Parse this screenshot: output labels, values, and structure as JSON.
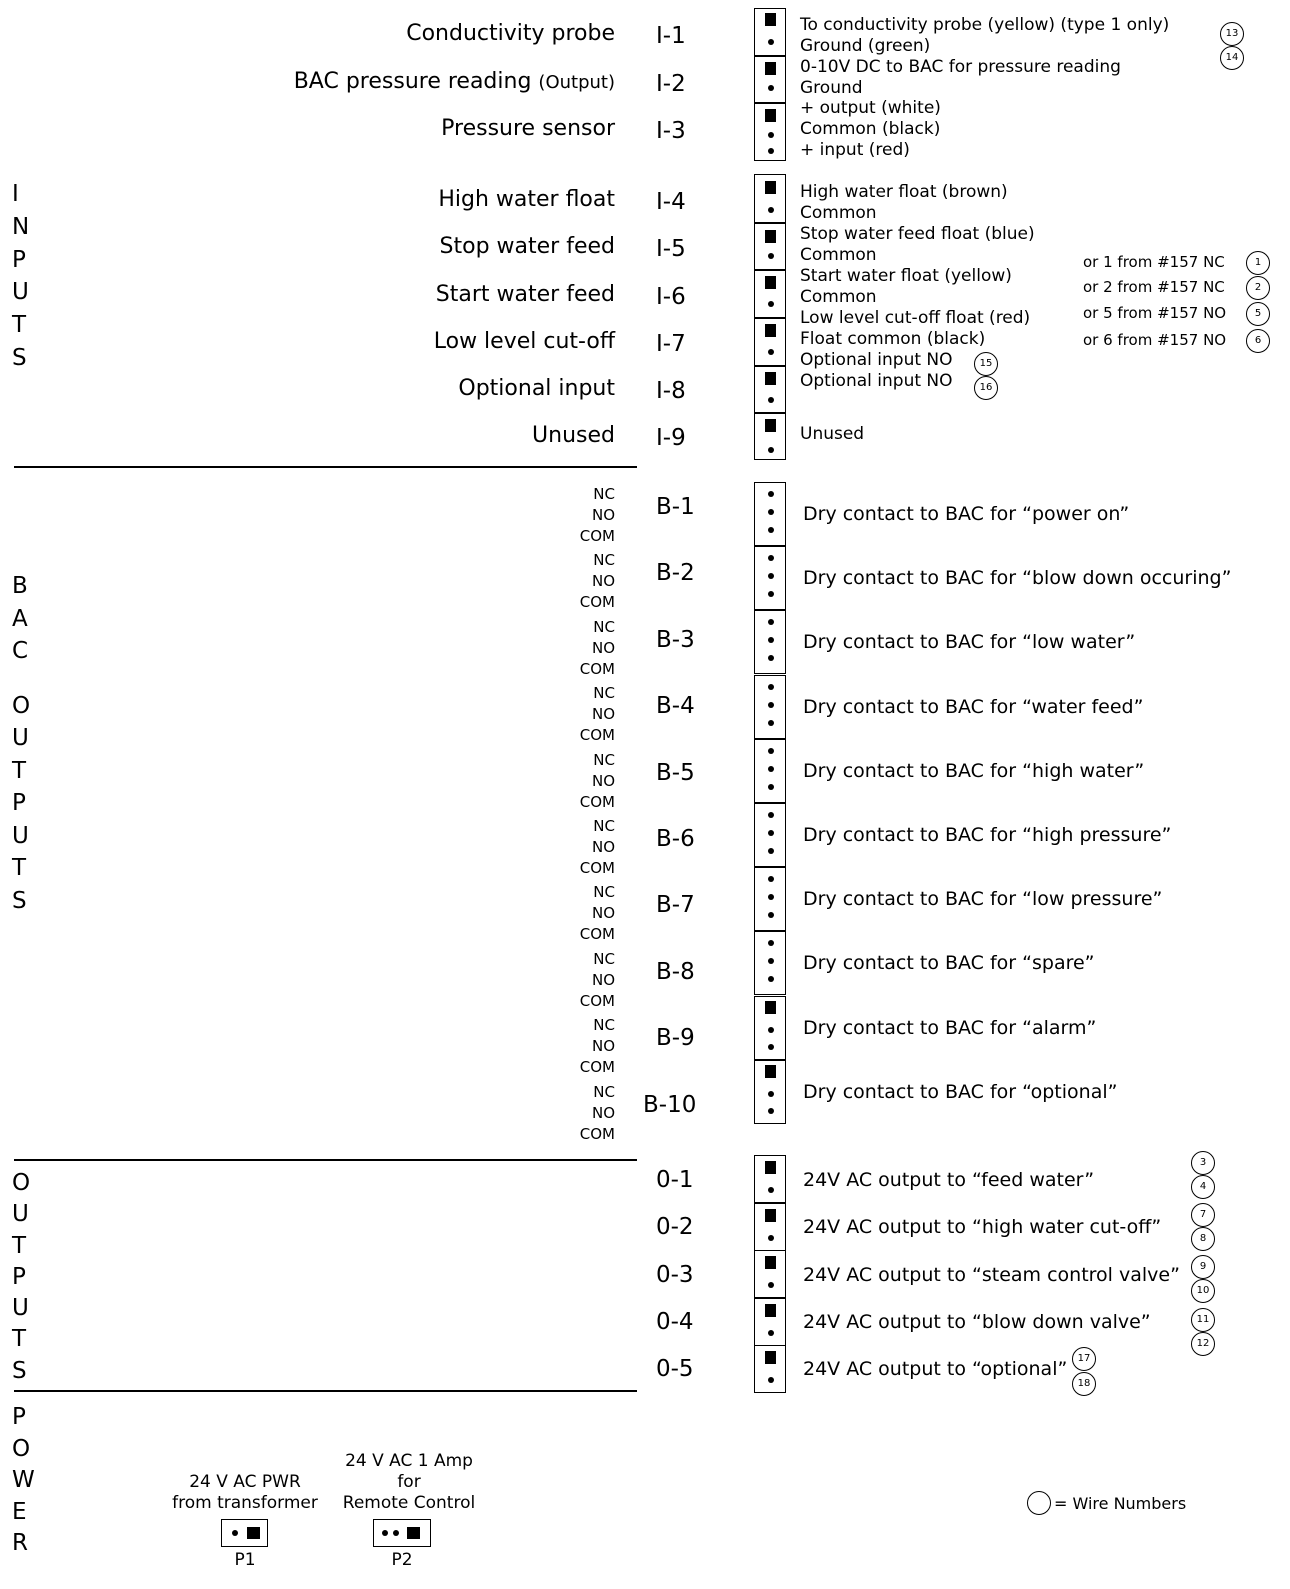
{
  "sections": {
    "inputs_vertical": "INPUTS",
    "bac_vertical": "BAC OUTPUTS",
    "outputs_vertical": "OUTPUTS",
    "power_vertical": "POWER"
  },
  "inputs": [
    {
      "label": "Conductivity probe",
      "term": "I-1",
      "lines": [
        "To conductivity probe (yellow) (type 1 only)",
        "Ground (green)"
      ],
      "wires": [
        "13",
        "14"
      ]
    },
    {
      "label": "BAC pressure reading",
      "label_small": "(Output)",
      "term": "I-2",
      "lines": [
        "0-10V DC to BAC for pressure reading",
        "Ground"
      ],
      "wires": []
    },
    {
      "label": "Pressure sensor",
      "term": "I-3",
      "lines": [
        "+ output (white)",
        "Common (black)",
        "+ input (red)"
      ],
      "wires": []
    },
    {
      "label": "High water float",
      "term": "I-4",
      "lines": [
        "High water float (brown)",
        "Common"
      ],
      "wires": []
    },
    {
      "label": "Stop water feed",
      "term": "I-5",
      "lines": [
        "Stop water feed float (blue)",
        "Common"
      ],
      "wires": []
    },
    {
      "label": "Start water feed",
      "term": "I-6",
      "lines": [
        "Start water float (yellow)",
        "Common"
      ],
      "wires": []
    },
    {
      "label": "Low level cut-off",
      "term": "I-7",
      "lines": [
        "Low level cut-off float (red)",
        "Float common (black)"
      ],
      "wires": []
    },
    {
      "label": "Optional input",
      "term": "I-8",
      "lines": [
        "Optional input NO",
        "Optional input NO"
      ],
      "wires": [
        "15",
        "16"
      ]
    },
    {
      "label": "Unused",
      "term": "I-9",
      "lines": [
        "Unused"
      ],
      "wires": []
    }
  ],
  "alternates": [
    {
      "text": "or 1 from #157 NC",
      "wire": "1"
    },
    {
      "text": "or 2 from #157 NC",
      "wire": "2"
    },
    {
      "text": "or 5 from #157 NO",
      "wire": "5"
    },
    {
      "text": "or 6 from #157 NO",
      "wire": "6"
    }
  ],
  "contact_labels": [
    "NC",
    "NO",
    "COM"
  ],
  "bac_outputs": [
    {
      "term": "B-1",
      "desc": "Dry contact to BAC for “power on”"
    },
    {
      "term": "B-2",
      "desc": "Dry contact to BAC for “blow down occuring”"
    },
    {
      "term": "B-3",
      "desc": "Dry contact to BAC for “low water”"
    },
    {
      "term": "B-4",
      "desc": "Dry contact to BAC for “water feed”"
    },
    {
      "term": "B-5",
      "desc": "Dry contact to BAC for “high water”"
    },
    {
      "term": "B-6",
      "desc": "Dry contact to BAC for “high pressure”"
    },
    {
      "term": "B-7",
      "desc": "Dry contact to BAC for “low pressure”"
    },
    {
      "term": "B-8",
      "desc": "Dry contact to BAC for “spare”"
    },
    {
      "term": "B-9",
      "desc": "Dry contact to BAC for “alarm”"
    },
    {
      "term": "B-10",
      "desc": "Dry contact to BAC for “optional”"
    }
  ],
  "outputs": [
    {
      "term": "0-1",
      "desc": "24V AC output to “feed water”",
      "wires": [
        "3",
        "4"
      ]
    },
    {
      "term": "0-2",
      "desc": "24V AC output to “high water cut-off”",
      "wires": [
        "7",
        "8"
      ]
    },
    {
      "term": "0-3",
      "desc": "24V AC output to “steam control valve”",
      "wires": [
        "9",
        "10"
      ]
    },
    {
      "term": "0-4",
      "desc": "24V AC output to “blow down valve”",
      "wires": [
        "11",
        "12"
      ]
    },
    {
      "term": "0-5",
      "desc": "24V AC output to “optional”",
      "wires": [
        "17",
        "18"
      ]
    }
  ],
  "power": {
    "p1": {
      "caption": [
        "24 V AC PWR",
        "from transformer"
      ],
      "name": "P1"
    },
    "p2": {
      "caption": [
        "24 V AC 1 Amp",
        "for",
        "Remote Control"
      ],
      "name": "P2"
    }
  },
  "legend": "= Wire Numbers"
}
